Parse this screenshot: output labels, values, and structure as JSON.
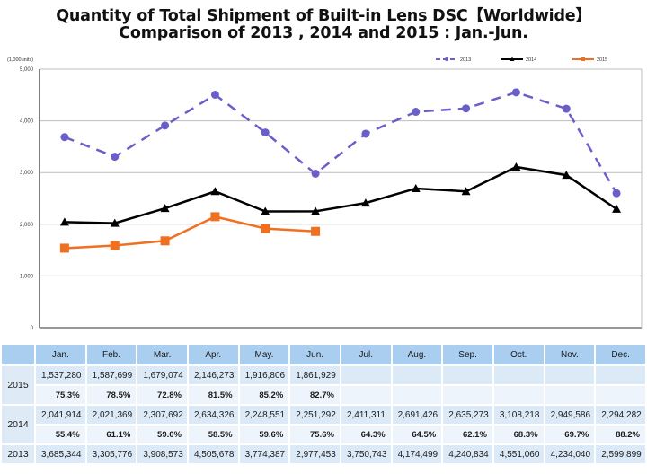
{
  "title_line1": "Quantity of Total Shipment of Built-in Lens DSC【Worldwide】",
  "title_line2": "Comparison of 2013 , 2014 and 2015 : Jan.-Jun.",
  "chart_data": {
    "type": "line",
    "title": "Quantity of Total Shipment of Built-in Lens DSC [Worldwide] Comparison of 2013, 2014 and 2015 : Jan.-Jun.",
    "unit_label": "(1,000units)",
    "xlabel": "",
    "ylabel": "(1,000units)",
    "categories": [
      "Jan.",
      "Feb.",
      "Mar.",
      "Apr.",
      "May.",
      "Jun.",
      "Jul.",
      "Aug.",
      "Sep.",
      "Oct.",
      "Nov.",
      "Dec."
    ],
    "ylim": [
      0,
      5000
    ],
    "yticks": [
      0,
      1000,
      2000,
      3000,
      4000,
      5000
    ],
    "ytick_labels": [
      "0",
      "1,000",
      "2,000",
      "3,000",
      "4,000",
      "5,000"
    ],
    "grid": true,
    "legend_position": "top-right",
    "series": [
      {
        "name": "2013",
        "color": "#6a5fc9",
        "style": "dashed",
        "marker": "circle",
        "values": [
          3685.344,
          3305.776,
          3908.573,
          4505.678,
          3774.387,
          2977.453,
          3750.743,
          4174.499,
          4240.834,
          4551.06,
          4234.04,
          2599.899
        ]
      },
      {
        "name": "2014",
        "color": "#000000",
        "style": "solid",
        "marker": "triangle",
        "values": [
          2041.914,
          2021.369,
          2307.692,
          2634.326,
          2248.551,
          2251.292,
          2411.311,
          2691.426,
          2635.273,
          3108.218,
          2949.586,
          2294.282
        ]
      },
      {
        "name": "2015",
        "color": "#f07020",
        "style": "solid",
        "marker": "square",
        "values": [
          1537.28,
          1587.699,
          1679.074,
          2146.273,
          1916.806,
          1861.929,
          null,
          null,
          null,
          null,
          null,
          null
        ]
      }
    ]
  },
  "table": {
    "months": [
      "Jan.",
      "Feb.",
      "Mar.",
      "Apr.",
      "May.",
      "Jun.",
      "Jul.",
      "Aug.",
      "Sep.",
      "Oct.",
      "Nov.",
      "Dec."
    ],
    "rows": [
      {
        "year": "2015",
        "values": [
          "1,537,280",
          "1,587,699",
          "1,679,074",
          "2,146,273",
          "1,916,806",
          "1,861,929",
          "",
          "",
          "",
          "",
          "",
          ""
        ],
        "percents": [
          "75.3%",
          "78.5%",
          "72.8%",
          "81.5%",
          "85.2%",
          "82.7%",
          "",
          "",
          "",
          "",
          "",
          ""
        ]
      },
      {
        "year": "2014",
        "values": [
          "2,041,914",
          "2,021,369",
          "2,307,692",
          "2,634,326",
          "2,248,551",
          "2,251,292",
          "2,411,311",
          "2,691,426",
          "2,635,273",
          "3,108,218",
          "2,949,586",
          "2,294,282"
        ],
        "percents": [
          "55.4%",
          "61.1%",
          "59.0%",
          "58.5%",
          "59.6%",
          "75.6%",
          "64.3%",
          "64.5%",
          "62.1%",
          "68.3%",
          "69.7%",
          "88.2%"
        ]
      },
      {
        "year": "2013",
        "values": [
          "3,685,344",
          "3,305,776",
          "3,908,573",
          "4,505,678",
          "3,774,387",
          "2,977,453",
          "3,750,743",
          "4,174,499",
          "4,240,834",
          "4,551,060",
          "4,234,040",
          "2,599,899"
        ]
      }
    ]
  }
}
